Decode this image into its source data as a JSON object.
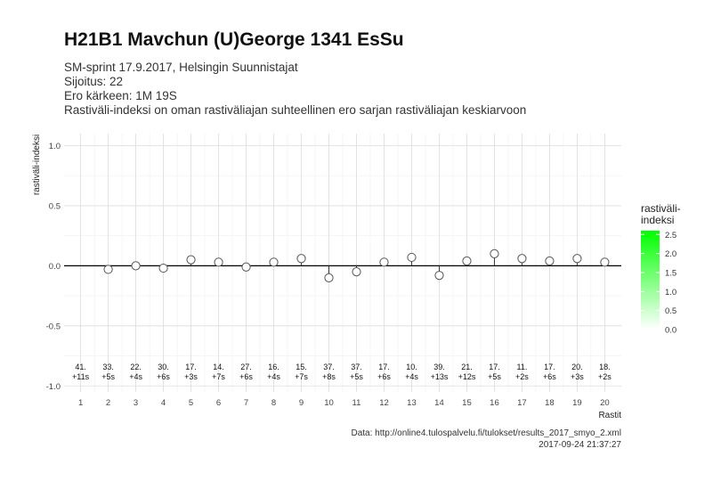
{
  "header": {
    "title": "H21B1 Mavchun (U)George 1341 EsSu",
    "subtitle_lines": [
      "SM-sprint 17.9.2017, Helsingin Suunnistajat",
      "Sijoitus: 22",
      "Ero kärkeen: 1M 19S",
      "Rastiväli-indeksi on oman rastiväliajan suhteellinen ero sarjan rastiväliajan keskiarvoon"
    ]
  },
  "caption": {
    "source": "Data: http://online4.tulospalvelu.fi/tulokset/results_2017_smyo_2.xml",
    "timestamp": "2017-09-24 21:37:27"
  },
  "chart_data": {
    "type": "scatter",
    "xlabel": "Rastit",
    "ylabel": "rastiväli-indeksi",
    "ylim": [
      -1.05,
      1.1
    ],
    "yticks": [
      1.0,
      0.5,
      0.0,
      -0.5,
      -1.0
    ],
    "ytick_labels": [
      "1.0",
      "0.5",
      "0.0",
      "-0.5",
      "-1.0"
    ],
    "x": [
      1,
      2,
      3,
      4,
      5,
      6,
      7,
      8,
      9,
      10,
      11,
      12,
      13,
      14,
      15,
      16,
      17,
      18,
      19,
      20
    ],
    "values": [
      null,
      -0.03,
      0.0,
      -0.02,
      0.05,
      0.03,
      -0.01,
      0.03,
      0.06,
      -0.1,
      -0.05,
      0.03,
      0.07,
      -0.08,
      0.04,
      0.1,
      0.06,
      0.04,
      0.06,
      0.03
    ],
    "rank_labels": [
      "41.",
      "33.",
      "22.",
      "30.",
      "17.",
      "14.",
      "27.",
      "16.",
      "15.",
      "37.",
      "37.",
      "17.",
      "10.",
      "39.",
      "21.",
      "17.",
      "11.",
      "17.",
      "20.",
      "18."
    ],
    "diff_labels": [
      "+11s",
      "+5s",
      "+4s",
      "+6s",
      "+3s",
      "+7s",
      "+6s",
      "+4s",
      "+7s",
      "+8s",
      "+5s",
      "+6s",
      "+4s",
      "+13s",
      "+12s",
      "+5s",
      "+2s",
      "+6s",
      "+3s",
      "+2s"
    ],
    "legend": {
      "title_lines": [
        "rastiväli-",
        "indeksi"
      ],
      "ticks": [
        "2.5",
        "2.0",
        "1.5",
        "1.0",
        "0.5",
        "0.0"
      ],
      "range": [
        0,
        2.6
      ],
      "colors": [
        "#ffffff",
        "#00ff00"
      ],
      "placement": "right"
    },
    "grid": true
  }
}
